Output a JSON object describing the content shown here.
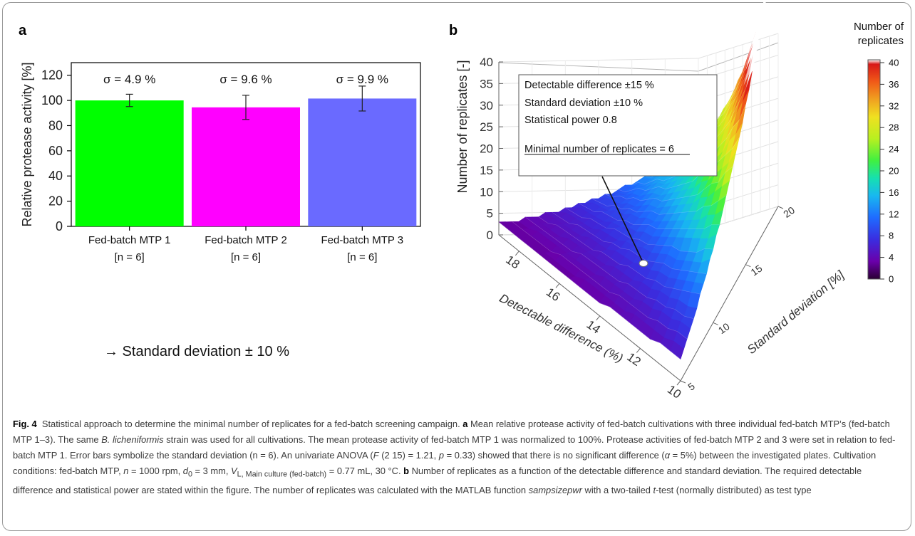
{
  "panel_a": {
    "letter": "a",
    "note": "→ Standard deviation ± 10 %"
  },
  "panel_b": {
    "letter": "b",
    "annotation": {
      "line1": "Detectable difference ±15 %",
      "line2": "Standard deviation ±10 %",
      "line3": "Statistical power 0.8",
      "line4": "Minimal number of replicates = 6"
    },
    "colorbar": {
      "title_line1": "Number of",
      "title_line2": "replicates",
      "ticks": [
        "40",
        "36",
        "32",
        "28",
        "24",
        "20",
        "16",
        "12",
        "8",
        "4",
        "0"
      ],
      "colors": [
        "#2a0033",
        "#6a00aa",
        "#3a2de0",
        "#1f6bff",
        "#18b8f0",
        "#16e0b0",
        "#40f040",
        "#b8f020",
        "#f0e020",
        "#f0a020",
        "#f05a18",
        "#d81818",
        "#ffffff"
      ]
    }
  },
  "chart_data": [
    {
      "type": "bar",
      "title": "",
      "categories": [
        "Fed-batch MTP 1",
        "Fed-batch MTP 2",
        "Fed-batch MTP 3"
      ],
      "category_sublabels": [
        "[n = 6]",
        "[n = 6]",
        "[n = 6]"
      ],
      "values": [
        100,
        94.5,
        101.5
      ],
      "error": [
        4.9,
        9.6,
        9.9
      ],
      "bar_labels": [
        "σ = 4.9 %",
        "σ = 9.6 %",
        "σ = 9.9 %"
      ],
      "colors": [
        "#00ff00",
        "#ff00ff",
        "#6a6aff"
      ],
      "xlabel": "",
      "ylabel": "Relative protease activity [%]",
      "ylim": [
        0,
        130
      ],
      "yticks": [
        0,
        20,
        40,
        60,
        80,
        100,
        120
      ]
    },
    {
      "type": "surface",
      "title": "",
      "zlabel": "Number of replicates [-]",
      "xlabel": "Detectable difference (%)",
      "ylabel": "Standard deviation [%]",
      "zlim": [
        0,
        40
      ],
      "zticks": [
        0,
        5,
        10,
        15,
        20,
        25,
        30,
        35,
        40
      ],
      "xticks": [
        18,
        16,
        14,
        12,
        10
      ],
      "yticks": [
        5,
        10,
        15,
        20
      ],
      "x_range": [
        10,
        19
      ],
      "y_range": [
        5,
        20
      ],
      "marked_point": {
        "x": 15,
        "y": 10,
        "z": 6
      }
    }
  ],
  "caption": {
    "fig_label": "Fig. 4",
    "intro": "Statistical approach to determine the minimal number of replicates for a fed-batch screening campaign.",
    "a_label": "a",
    "a_text_1": "Mean relative protease activity of fed-batch cultivations with three individual fed-batch MTP’s (fed-batch MTP 1–3). The same",
    "species": "B. licheniformis",
    "a_text_2": "strain was used for all cultivations. The mean protease activity of fed-batch MTP 1 was normalized to 100%. Protease activities of fed-batch MTP 2 and 3 were set in relation to fed-batch MTP 1. Error bars symbolize the standard deviation (n = 6). An univariate ANOVA (",
    "F": "F",
    "anova_stat": "(2 15) = 1.21,",
    "p": "p",
    "p_val": "= 0.33) showed that there is no significant difference (",
    "alpha": "α",
    "alpha_val": "= 5%) between the investigated plates. Cultivation conditions: fed-batch MTP,",
    "n": "n",
    "n_val": "= 1000 rpm,",
    "d0": "d",
    "d0_sub": "0",
    "d0_val": "= 3 mm,",
    "V": "V",
    "V_sub": "L, Main culture (fed-batch)",
    "V_val": "= 0.77 mL, 30 °C.",
    "b_label": "b",
    "b_text_1": "Number of replicates as a function of the detectable difference and standard deviation. The required detectable difference and statistical power are stated within the figure. The number of replicates was calculated with the MATLAB function",
    "func": "sampsizepwr",
    "b_text_2": "with a two-tailed",
    "t": "t",
    "b_text_3": "-test (normally distributed) as test type"
  }
}
